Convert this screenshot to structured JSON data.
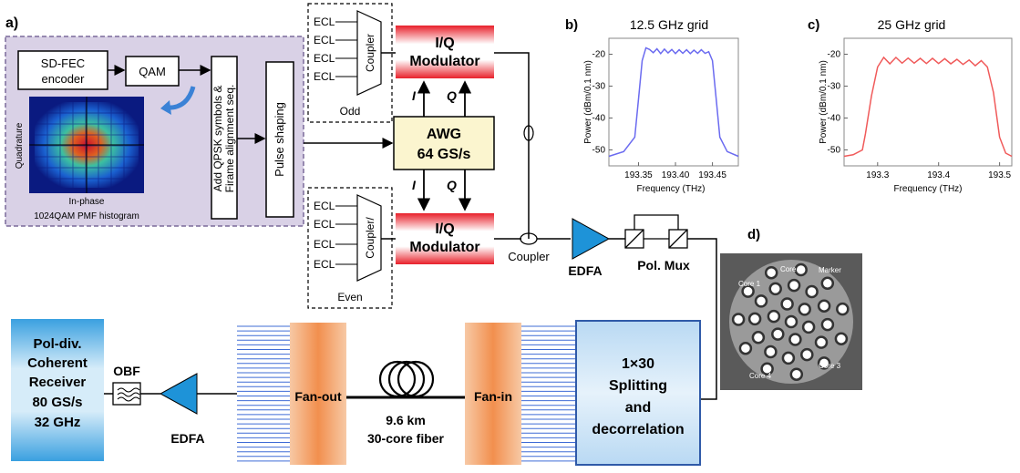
{
  "panel_a": {
    "label": "a)",
    "sdfec": "SD-FEC",
    "encoder": "encoder",
    "qam": "QAM",
    "qpsk_line1": "Add QPSK symbols &",
    "qpsk_line2": "Firame alignment seq.",
    "pulse": "Pulse shaping",
    "quadrature": "Quadrature",
    "inphase": "In-phase",
    "histogram_caption": "1024QAM PMF histogram",
    "ecl": "ECL",
    "coupler_top": "Coupler",
    "coupler_bottom": "Coupler/",
    "odd": "Odd",
    "even": "Even",
    "iq1": "I/Q",
    "mod1": "Modulator",
    "iq2": "I/Q",
    "mod2": "Modulator",
    "awg1": "AWG",
    "awg2": "64 GS/s",
    "I": "I",
    "Q": "Q",
    "coupler_out": "Coupler",
    "edfa_tx": "EDFA",
    "polmux": "Pol. Mux"
  },
  "panel_b": {
    "label": "b)",
    "title": "12.5 GHz grid",
    "ylabel": "Power (dBm/0.1 nm)",
    "xlabel": "Frequency (THz)",
    "xticks": [
      "193.35",
      "193.40",
      "193.45"
    ],
    "yticks": [
      "-20",
      "-30",
      "-40",
      "-50"
    ]
  },
  "panel_c": {
    "label": "c)",
    "title": "25 GHz grid",
    "ylabel": "Power (dBm/0.1 nm)",
    "xlabel": "Frequency (THz)",
    "xticks": [
      "193.3",
      "193.4",
      "193.5"
    ],
    "yticks": [
      "-20",
      "-30",
      "-40",
      "-50"
    ]
  },
  "panel_d": {
    "label": "d)",
    "core1": "Core 1",
    "core2": "Core 2",
    "core3": "Core 3",
    "core4": "Core 4",
    "marker": "Marker"
  },
  "bottom": {
    "rx1": "Pol-div.",
    "rx2": "Coherent",
    "rx3": "Receiver",
    "rx4": "80 GS/s",
    "rx5": "32 GHz",
    "obf": "OBF",
    "edfa_rx": "EDFA",
    "fanout": "Fan-out",
    "fanin": "Fan-in",
    "fiber1": "9.6 km",
    "fiber2": "30-core fiber",
    "split1": "1×30",
    "split2": "Splitting",
    "split3": "and",
    "split4": "decorrelation"
  },
  "colors": {
    "panel_bg": "#d9d1e6",
    "modulator_red": "#e8202a",
    "awg_fill": "#fbf5cf",
    "edfa_blue": "#1e93d8",
    "fan_orange": "#f29a5a",
    "fiber_blue": "#3f6cd6",
    "spec_blue": "#6b6bf0",
    "spec_red": "#f05a5a"
  },
  "chart_data": [
    {
      "type": "line",
      "title": "12.5 GHz grid",
      "xlabel": "Frequency (THz)",
      "ylabel": "Power (dBm/0.1 nm)",
      "xlim": [
        193.31,
        193.485
      ],
      "ylim": [
        -55,
        -15
      ],
      "series": [
        {
          "x": [
            193.31,
            193.33,
            193.345,
            193.35,
            193.355,
            193.36,
            193.365,
            193.37,
            193.375,
            193.38,
            193.385,
            193.39,
            193.395,
            193.4,
            193.405,
            193.41,
            193.415,
            193.42,
            193.425,
            193.43,
            193.435,
            193.44,
            193.445,
            193.45,
            193.455,
            193.46,
            193.47,
            193.485
          ],
          "y": [
            -52,
            -50.5,
            -46,
            -34,
            -22,
            -18,
            -18.5,
            -19.5,
            -18.3,
            -19.8,
            -18.4,
            -19.6,
            -18.5,
            -19.8,
            -18.6,
            -19.7,
            -18.6,
            -19.8,
            -18.7,
            -19.7,
            -18.6,
            -19.7,
            -19.2,
            -22,
            -34,
            -46,
            -50.5,
            -52
          ]
        }
      ]
    },
    {
      "type": "line",
      "title": "25 GHz grid",
      "xlabel": "Frequency (THz)",
      "ylabel": "Power (dBm/0.1 nm)",
      "xlim": [
        193.245,
        193.52
      ],
      "ylim": [
        -55,
        -15
      ],
      "series": [
        {
          "x": [
            193.245,
            193.26,
            193.275,
            193.28,
            193.29,
            193.3,
            193.31,
            193.32,
            193.33,
            193.34,
            193.35,
            193.36,
            193.37,
            193.38,
            193.39,
            193.4,
            193.41,
            193.42,
            193.43,
            193.44,
            193.45,
            193.46,
            193.47,
            193.48,
            193.49,
            193.5,
            193.51,
            193.52
          ],
          "y": [
            -52,
            -51.5,
            -50,
            -45,
            -33,
            -24,
            -21,
            -23,
            -21,
            -22.8,
            -21.2,
            -22.8,
            -21.3,
            -22.9,
            -21.3,
            -22.9,
            -21.4,
            -23,
            -21.6,
            -23.2,
            -21.8,
            -23.6,
            -22,
            -24,
            -32,
            -46,
            -51,
            -52
          ]
        }
      ]
    }
  ]
}
